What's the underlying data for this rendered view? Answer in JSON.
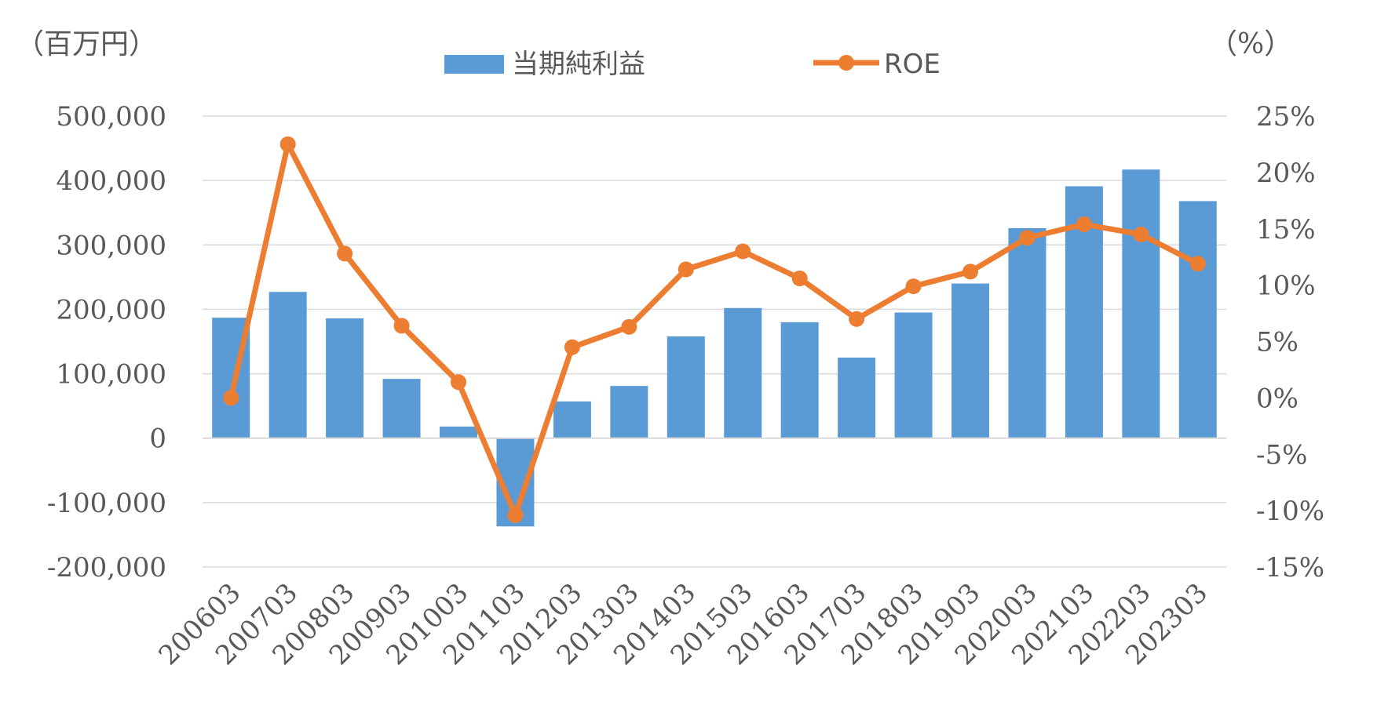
{
  "chart_data": {
    "type": "bar+line",
    "categories": [
      "200603",
      "200703",
      "200803",
      "200903",
      "201003",
      "201103",
      "201203",
      "201303",
      "201403",
      "201503",
      "201603",
      "201703",
      "201803",
      "201903",
      "202003",
      "202103",
      "202203",
      "202303"
    ],
    "series": [
      {
        "name": "当期純利益",
        "type": "bar",
        "axis": "left",
        "color": "#5B9BD5",
        "values": [
          187000,
          227000,
          186000,
          92000,
          18000,
          -137000,
          57000,
          81000,
          158000,
          202000,
          180000,
          125000,
          195000,
          240000,
          326000,
          391000,
          417000,
          368000
        ]
      },
      {
        "name": "ROE",
        "type": "line",
        "axis": "right",
        "color": "#ED7D31",
        "values": [
          0.0,
          22.5,
          12.8,
          6.4,
          1.4,
          -10.4,
          4.5,
          6.3,
          11.4,
          13.0,
          10.6,
          7.0,
          9.9,
          11.2,
          14.2,
          15.4,
          14.5,
          11.9
        ]
      }
    ],
    "left_axis": {
      "unit_label": "（百万円）",
      "ylim": [
        -200000,
        500000
      ],
      "ticks": [
        {
          "value": 500000,
          "label": "500,000"
        },
        {
          "value": 400000,
          "label": "400,000"
        },
        {
          "value": 300000,
          "label": "300,000"
        },
        {
          "value": 200000,
          "label": "200,000"
        },
        {
          "value": 100000,
          "label": "100,000"
        },
        {
          "value": 0,
          "label": "0"
        },
        {
          "value": -100000,
          "label": "-100,000"
        },
        {
          "value": -200000,
          "label": "-200,000"
        }
      ],
      "negative_label_color": "#FF0000"
    },
    "right_axis": {
      "unit_label": "（%）",
      "ylim": [
        -15,
        25
      ],
      "ticks": [
        {
          "value": 25,
          "label": "25%"
        },
        {
          "value": 20,
          "label": "20%"
        },
        {
          "value": 15,
          "label": "15%"
        },
        {
          "value": 10,
          "label": "10%"
        },
        {
          "value": 5,
          "label": "5%"
        },
        {
          "value": 0,
          "label": "0%"
        },
        {
          "value": -5,
          "label": "-5%"
        },
        {
          "value": -10,
          "label": "-10%"
        },
        {
          "value": -15,
          "label": "-15%"
        }
      ]
    },
    "grid": true,
    "legend": "top-center",
    "tick_color": "#595959",
    "grid_color": "#D9D9D9"
  }
}
